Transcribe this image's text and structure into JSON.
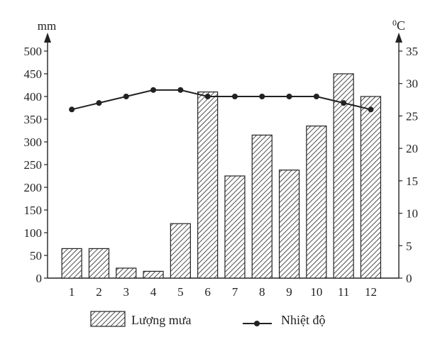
{
  "chart_data": {
    "type": "bar",
    "categories": [
      "1",
      "2",
      "3",
      "4",
      "5",
      "6",
      "7",
      "8",
      "9",
      "10",
      "11",
      "12"
    ],
    "series": [
      {
        "name": "Lượng mưa",
        "type": "bar",
        "axis": "left",
        "values": [
          65,
          65,
          22,
          15,
          120,
          410,
          225,
          315,
          238,
          335,
          450,
          400
        ]
      },
      {
        "name": "Nhiệt độ",
        "type": "line",
        "axis": "right",
        "values": [
          26,
          27,
          28,
          29,
          29,
          28,
          28,
          28,
          28,
          28,
          27,
          26
        ]
      }
    ],
    "y_left": {
      "label": "mm",
      "ylim": [
        0,
        500
      ],
      "ticks": [
        "0",
        "50",
        "100",
        "150",
        "200",
        "250",
        "300",
        "350",
        "400",
        "450",
        "500"
      ]
    },
    "y_right": {
      "label": "°C",
      "label_sup": "0",
      "label_main": "C",
      "ylim": [
        0,
        35
      ],
      "ticks": [
        "0",
        "5",
        "10",
        "15",
        "20",
        "25",
        "30",
        "35"
      ]
    },
    "grid": false,
    "legend_position": "bottom"
  }
}
